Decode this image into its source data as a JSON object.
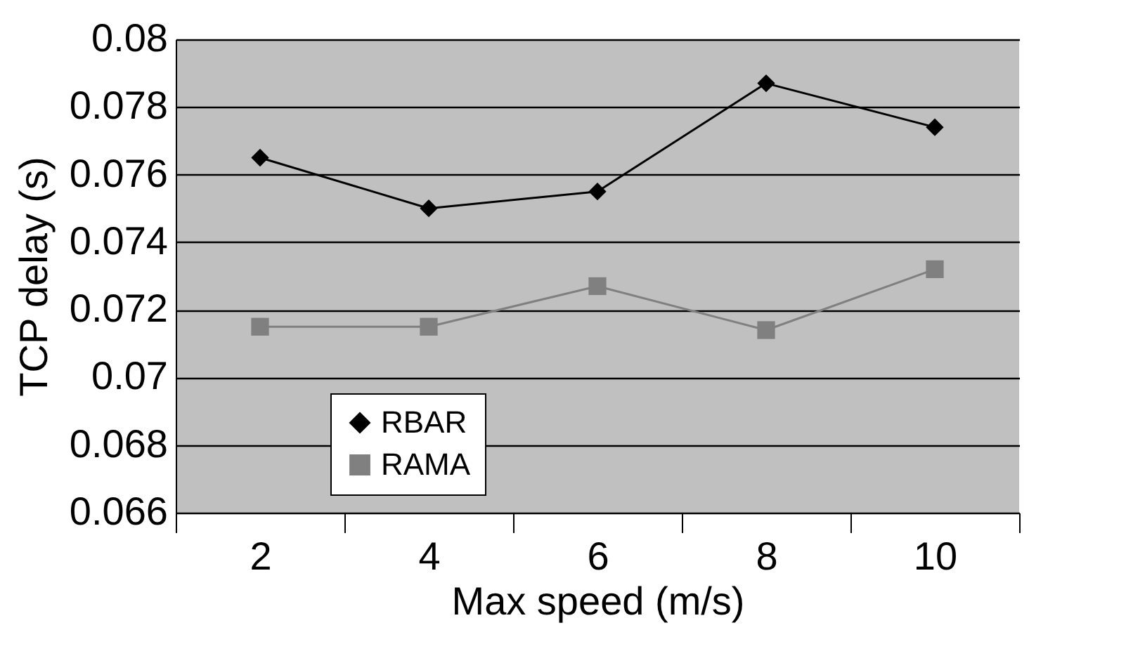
{
  "chart_data": {
    "type": "line",
    "xlabel": "Max speed (m/s)",
    "ylabel": "TCP delay (s)",
    "categories": [
      "2",
      "4",
      "6",
      "8",
      "10"
    ],
    "series": [
      {
        "name": "RBAR",
        "color": "#000000",
        "marker": "diamond",
        "values": [
          0.0765,
          0.075,
          0.0755,
          0.0787,
          0.0774
        ]
      },
      {
        "name": "RAMA",
        "color": "#808080",
        "marker": "square",
        "values": [
          0.0715,
          0.0715,
          0.0727,
          0.0714,
          0.0732
        ]
      }
    ],
    "ylim": [
      0.066,
      0.08
    ],
    "yticks": [
      0.066,
      0.068,
      0.07,
      0.072,
      0.074,
      0.076,
      0.078,
      0.08
    ],
    "grid": "y",
    "legend": "bottom left"
  }
}
